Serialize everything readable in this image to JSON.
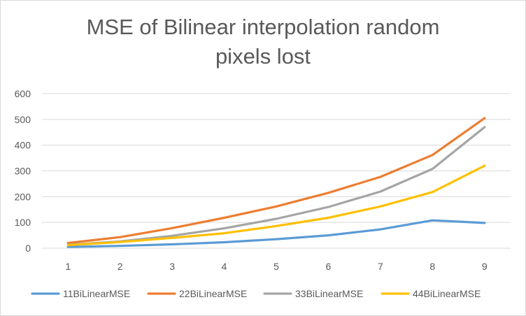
{
  "chart_data": {
    "type": "line",
    "title_lines": [
      "MSE of Bilinear interpolation random",
      "pixels lost"
    ],
    "categories": [
      "1",
      "2",
      "3",
      "4",
      "5",
      "6",
      "7",
      "8",
      "9"
    ],
    "y_ticks": [
      "0",
      "100",
      "200",
      "300",
      "400",
      "500",
      "600"
    ],
    "ylim": [
      0,
      600
    ],
    "grid": true,
    "legend_position": "bottom",
    "series": [
      {
        "name": "11BiLinearMSE",
        "color": "#5B9BD5",
        "values": [
          5,
          9,
          15,
          23,
          35,
          50,
          73,
          108,
          98
        ]
      },
      {
        "name": "22BiLinearMSE",
        "color": "#ED7D31",
        "values": [
          20,
          43,
          78,
          118,
          162,
          215,
          277,
          362,
          505
        ]
      },
      {
        "name": "33BiLinearMSE",
        "color": "#A5A5A5",
        "values": [
          13,
          26,
          48,
          77,
          114,
          160,
          220,
          308,
          470
        ]
      },
      {
        "name": "44BiLinearMSE",
        "color": "#FFC000",
        "values": [
          12,
          24,
          40,
          58,
          86,
          118,
          162,
          218,
          320
        ]
      }
    ]
  }
}
